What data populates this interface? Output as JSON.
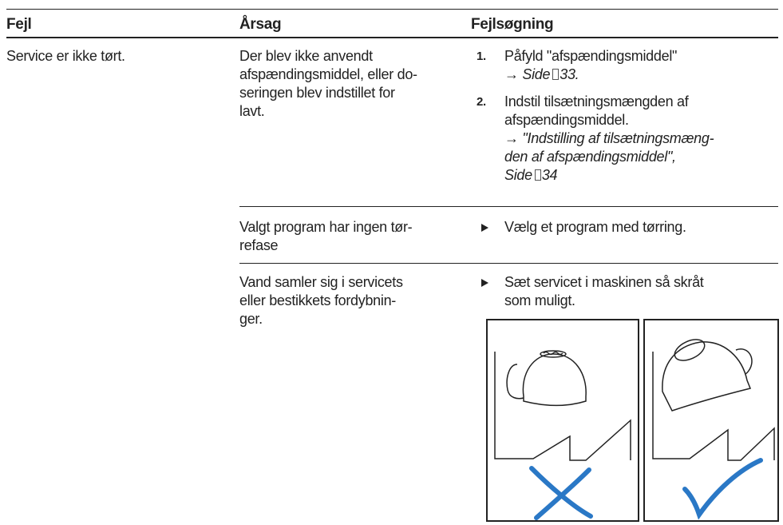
{
  "table": {
    "headers": [
      "Fejl",
      "Årsag",
      "Fejlsøgning"
    ],
    "rows": [
      {
        "fault": "Service er ikke tørt.",
        "causes": [
          {
            "lines": [
              "Der blev ikke anvendt",
              "afspændingsmiddel, eller do-",
              "seringen blev indstillet for",
              "lavt."
            ],
            "steps": [
              {
                "number": "1.",
                "lines": [
                  "Påfyld \"afspændingsmiddel\""
                ],
                "ref": {
                  "arrow": "→",
                  "lines": [
                    "Side"
                  ],
                  "page": "33",
                  "end": "."
                }
              },
              {
                "number": "2.",
                "lines": [
                  "Indstil tilsætningsmængden af",
                  "afspændingsmiddel."
                ],
                "ref": {
                  "arrow": "→",
                  "lines": [
                    "\"Indstilling af tilsætningsmæng-",
                    "den af afspændingsmiddel\",",
                    "Side"
                  ],
                  "page": "34"
                }
              }
            ]
          },
          {
            "lines": [
              "Valgt program har ingen tør-",
              "refase"
            ],
            "steps": [
              {
                "lines": [
                  "Vælg et program med tørring."
                ]
              }
            ]
          },
          {
            "lines": [
              "Vand samler sig i servicets",
              "eller bestikkets fordybnin-",
              "ger."
            ],
            "steps": [
              {
                "lines": [
                  "Sæt servicet i maskinen så skråt",
                  "som muligt."
                ]
              }
            ]
          }
        ]
      }
    ]
  }
}
